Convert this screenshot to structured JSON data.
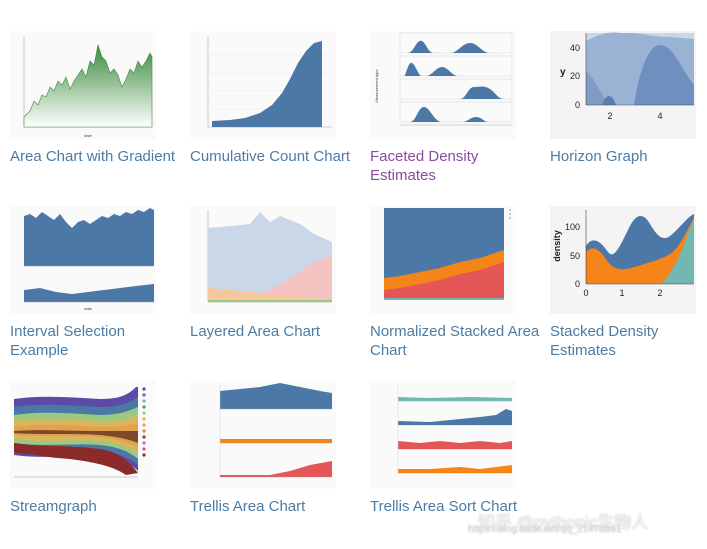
{
  "gallery": {
    "items": [
      {
        "title": "Area Chart with Gradient",
        "thumb_icon": "area-gradient-chart-icon",
        "state": "default"
      },
      {
        "title": "Cumulative Count Chart",
        "thumb_icon": "cumulative-count-chart-icon",
        "state": "default"
      },
      {
        "title": "Faceted Density Estimates",
        "thumb_icon": "faceted-density-chart-icon",
        "state": "visited"
      },
      {
        "title": "Horizon Graph",
        "thumb_icon": "horizon-graph-icon",
        "state": "default"
      },
      {
        "title": "Interval Selection Example",
        "thumb_icon": "interval-selection-chart-icon",
        "state": "default"
      },
      {
        "title": "Layered Area Chart",
        "thumb_icon": "layered-area-chart-icon",
        "state": "default"
      },
      {
        "title": "Normalized Stacked Area Chart",
        "thumb_icon": "normalized-stacked-area-chart-icon",
        "state": "default"
      },
      {
        "title": "Stacked Density Estimates",
        "thumb_icon": "stacked-density-chart-icon",
        "state": "default"
      },
      {
        "title": "Streamgraph",
        "thumb_icon": "streamgraph-icon",
        "state": "default"
      },
      {
        "title": "Trellis Area Chart",
        "thumb_icon": "trellis-area-chart-icon",
        "state": "default"
      },
      {
        "title": "Trellis Area Sort Chart",
        "thumb_icon": "trellis-area-sort-chart-icon",
        "state": "default"
      }
    ]
  },
  "thumb_labels": {
    "horizon_y_axis": "y",
    "horizon_y_ticks": [
      "0",
      "20",
      "40"
    ],
    "horizon_x_ticks": [
      "2",
      "4"
    ],
    "stacked_density_y_axis": "density",
    "stacked_density_y_ticks": [
      "0",
      "50",
      "100"
    ],
    "stacked_density_x_ticks": [
      "0",
      "1",
      "2"
    ]
  },
  "colors": {
    "link": "#4a7ca6",
    "link_visited": "#8b4b9a",
    "blue": "#4c78a8",
    "orange": "#f58518",
    "red": "#e45756",
    "teal": "#72b7b2",
    "green": "#54a24b"
  },
  "watermark": {
    "text": "知乎 @pythonic生物人",
    "url": "https://blog.csdn.net/qq_21478261"
  }
}
